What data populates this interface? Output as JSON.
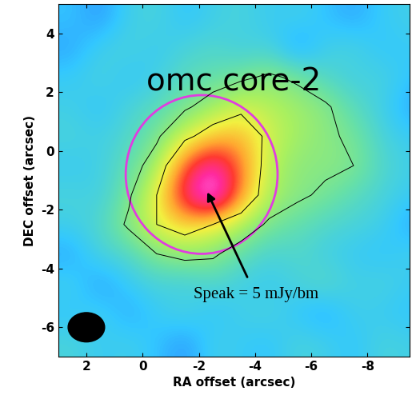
{
  "chart_data": {
    "type": "heatmap",
    "title": "omc core-2",
    "x_label": "RA offset (arcsec)",
    "y_label": "DEC offset (arcsec)",
    "x": [
      2.5,
      1.5,
      0.5,
      -0.5,
      -1.5,
      -2.5,
      -3.5,
      -4.5,
      -5.5,
      -6.5,
      -7.5,
      -8.5,
      -9.5
    ],
    "y": [
      -6.5,
      -5.5,
      -4.5,
      -3.5,
      -2.5,
      -1.5,
      -0.5,
      0.5,
      1.5,
      2.5,
      3.5,
      4.5
    ],
    "values": [
      [
        0.3,
        0.1,
        0.2,
        0,
        -0.3,
        0.2,
        0.1,
        0,
        0.3,
        0.2,
        0,
        0.3,
        0.2
      ],
      [
        0,
        0.2,
        -0.2,
        0.1,
        0.3,
        0,
        0.2,
        0.3,
        0,
        -0.2,
        0.2,
        0.1,
        0
      ],
      [
        0.2,
        -0.3,
        0.1,
        0.3,
        0.2,
        0.4,
        0.2,
        0.1,
        0.3,
        0.5,
        0.2,
        0.3,
        0.1
      ],
      [
        -0.2,
        0.3,
        0.4,
        0.9,
        1.1,
        1.0,
        0.6,
        0.3,
        0.4,
        0.2,
        0.1,
        0,
        0.2
      ],
      [
        0.2,
        0.4,
        1.0,
        1.8,
        2.2,
        1.8,
        1.3,
        0.8,
        0.6,
        0.4,
        0.3,
        0.2,
        -0.2
      ],
      [
        0.3,
        0.2,
        0.8,
        1.8,
        3.6,
        4.8,
        2.6,
        1.3,
        1.0,
        0.8,
        0.5,
        0.3,
        0.1
      ],
      [
        0.1,
        0.2,
        0.6,
        1.2,
        3.0,
        4.0,
        2.8,
        1.4,
        1.0,
        1.0,
        0.9,
        0.4,
        0.2
      ],
      [
        0.3,
        0.2,
        0.4,
        0.8,
        1.6,
        2.2,
        2.4,
        1.6,
        1.2,
        1.0,
        0.8,
        0.3,
        0.1
      ],
      [
        0.2,
        0,
        0.3,
        0.5,
        0.8,
        1.2,
        1.6,
        1.4,
        1.2,
        1.0,
        0.5,
        0.2,
        -0.2
      ],
      [
        0.1,
        0.3,
        0,
        0.2,
        0.5,
        0.6,
        0.8,
        1.0,
        0.8,
        0.4,
        0.2,
        0.3,
        0
      ],
      [
        -0.2,
        0.2,
        0.3,
        0.1,
        0.3,
        0.4,
        0.2,
        0.3,
        -0.3,
        0.2,
        0.3,
        0,
        0.1
      ],
      [
        0,
        -0.3,
        0.2,
        0.3,
        0,
        0.2,
        0.3,
        0.1,
        0.2,
        0,
        -0.2,
        0.1,
        0.2
      ]
    ],
    "color_range": [
      -0.6,
      5
    ],
    "contour_levels": [
      0.9,
      1.8
    ],
    "xlim": [
      3,
      -9.5
    ],
    "ylim": [
      -7,
      5
    ],
    "xticks": [
      2,
      0,
      -2,
      -4,
      -6,
      -8
    ],
    "yticks": [
      -6,
      -4,
      -2,
      0,
      2,
      4
    ],
    "circle": {
      "center": [
        -2.1,
        -0.8
      ],
      "radius": 2.7,
      "color": "#e03ce0"
    },
    "beam": {
      "center": [
        2.0,
        -6.0
      ],
      "width": 1.3,
      "height": 1.0
    },
    "annotation": {
      "text": "Speak = 5 mJy/bm",
      "xy": [
        -2.3,
        -1.4
      ],
      "xytext": [
        -1.8,
        -4.9
      ]
    }
  }
}
